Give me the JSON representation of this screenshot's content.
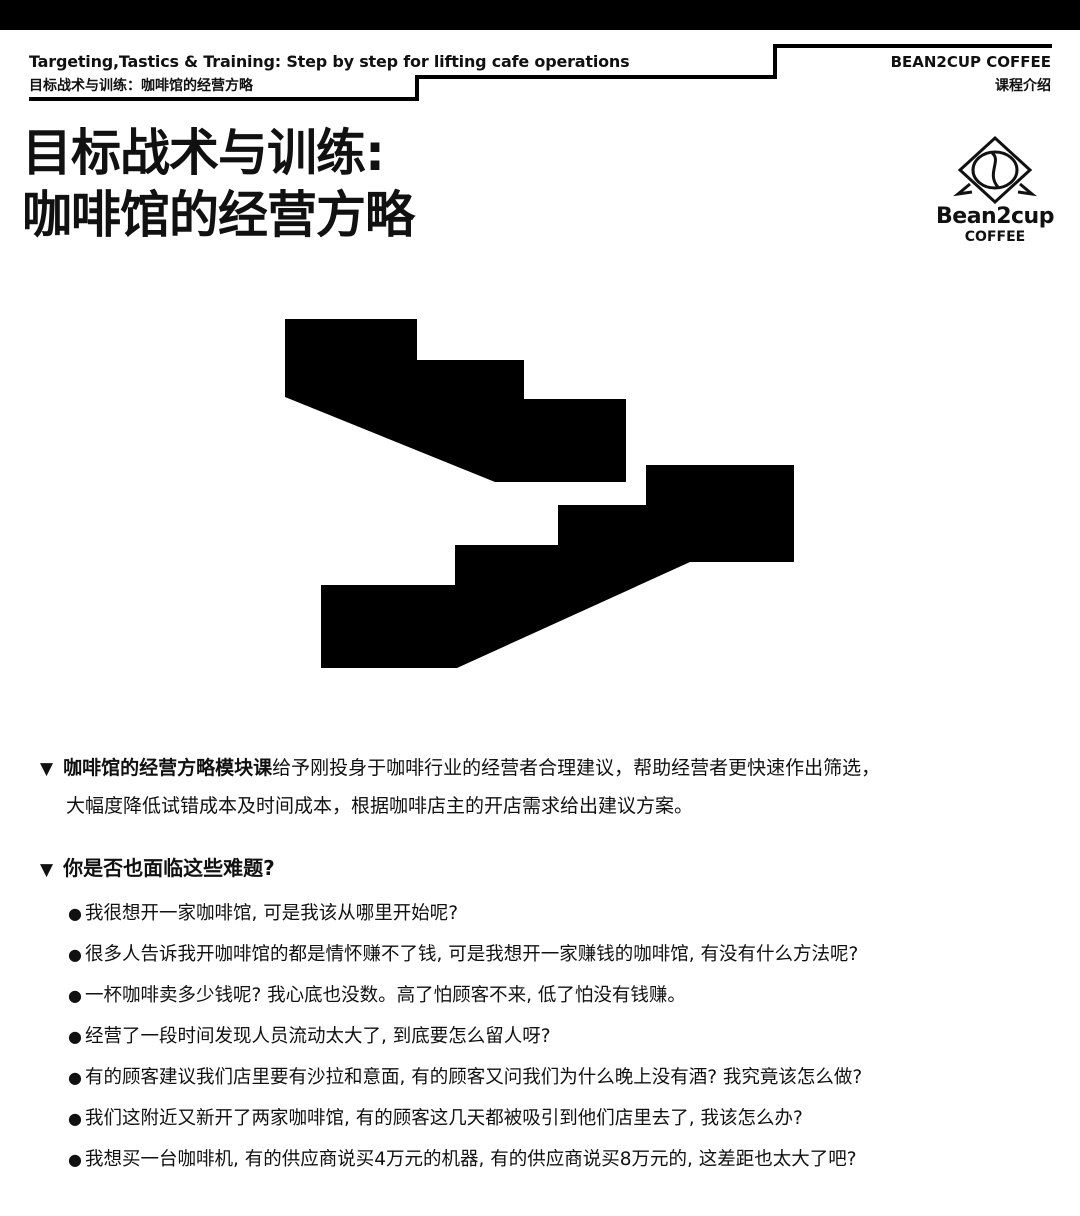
{
  "header": {
    "subtitle_en": "Targeting,Tastics & Training: Step by step for lifting cafe operations",
    "subtitle_cn": "目标战术与训练：咖啡馆的经营方略",
    "brand_en": "BEAN2CUP COFFEE",
    "brand_cn": "课程介绍"
  },
  "title": {
    "line1": "目标战术与训练:",
    "line2": "咖啡馆的经营方略"
  },
  "logo": {
    "name": "Bean2cup",
    "sub": "COFFEE",
    "icon": "coffee-bean-icon"
  },
  "intro": {
    "marker": "▼",
    "bold": "咖啡馆的经营方略模块课",
    "text1": "给予刚投身于咖啡行业的经营者合理建议，帮助经营者更快速作出筛选，",
    "text2": "大幅度降低试错成本及时间成本，根据咖啡店主的开店需求给出建议方案。"
  },
  "questions": {
    "marker": "▼",
    "heading": "你是否也面临这些难题?",
    "bullet": "●",
    "items": [
      "我很想开一家咖啡馆, 可是我该从哪里开始呢?",
      "很多人告诉我开咖啡馆的都是情怀赚不了钱, 可是我想开一家赚钱的咖啡馆, 有没有什么方法呢?",
      "一杯咖啡卖多少钱呢? 我心底也没数。高了怕顾客不来, 低了怕没有钱赚。",
      "经营了一段时间发现人员流动太大了, 到底要怎么留人呀?",
      "有的顾客建议我们店里要有沙拉和意面, 有的顾客又问我们为什么晚上没有酒? 我究竟该怎么做?",
      "我们这附近又新开了两家咖啡馆, 有的顾客这几天都被吸引到他们店里去了, 我该怎么办?",
      "我想买一台咖啡机, 有的供应商说买4万元的机器, 有的供应商说买8万元的, 这差距也太大了吧?"
    ]
  },
  "colors": {
    "ink": "#111111",
    "background": "#ffffff",
    "bar": "#000000"
  }
}
